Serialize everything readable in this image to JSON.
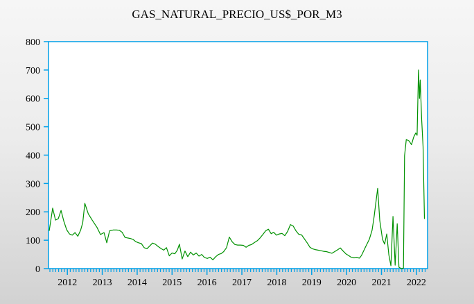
{
  "window": {
    "title": "GAS_NATURAL_PRECIO_US$_POR_M3"
  },
  "chart_data": {
    "type": "line",
    "title": "GAS_NATURAL_PRECIO_US$_POR_M3",
    "xlabel": "",
    "ylabel": "",
    "grid": "off",
    "legend": "none",
    "plot_bg": "#ffffff",
    "axis_color": "#00a0e8",
    "text_color": "#000000",
    "x_axis": {
      "range": [
        2011.46,
        2022.32
      ],
      "ticks": [
        2012,
        2013,
        2014,
        2015,
        2016,
        2017,
        2018,
        2019,
        2020,
        2021,
        2022
      ],
      "tick_labels": [
        "2012",
        "2013",
        "2014",
        "2015",
        "2016",
        "2017",
        "2018",
        "2019",
        "2020",
        "2021",
        "2022"
      ],
      "minor_ticks_per_year": 12
    },
    "y_axis": {
      "range": [
        0,
        800
      ],
      "ticks": [
        0,
        100,
        200,
        300,
        400,
        500,
        600,
        700,
        800
      ],
      "tick_labels": [
        "0",
        "100",
        "200",
        "300",
        "400",
        "500",
        "600",
        "700",
        "800"
      ]
    },
    "series": [
      {
        "name": "GAS_NATURAL_PRECIO_US$_POR_M3",
        "color": "#009100",
        "points": [
          [
            2011.48,
            133
          ],
          [
            2011.58,
            213
          ],
          [
            2011.66,
            171
          ],
          [
            2011.74,
            176
          ],
          [
            2011.82,
            205
          ],
          [
            2011.9,
            166
          ],
          [
            2011.98,
            137
          ],
          [
            2012.06,
            122
          ],
          [
            2012.14,
            118
          ],
          [
            2012.22,
            127
          ],
          [
            2012.3,
            114
          ],
          [
            2012.38,
            135
          ],
          [
            2012.44,
            162
          ],
          [
            2012.5,
            230
          ],
          [
            2012.6,
            193
          ],
          [
            2012.71,
            171
          ],
          [
            2012.85,
            145
          ],
          [
            2012.95,
            120
          ],
          [
            2013.05,
            127
          ],
          [
            2013.13,
            91
          ],
          [
            2013.21,
            133
          ],
          [
            2013.31,
            136
          ],
          [
            2013.41,
            136
          ],
          [
            2013.49,
            135
          ],
          [
            2013.57,
            128
          ],
          [
            2013.65,
            110
          ],
          [
            2013.73,
            108
          ],
          [
            2013.81,
            106
          ],
          [
            2013.88,
            103
          ],
          [
            2013.96,
            95
          ],
          [
            2014.04,
            91
          ],
          [
            2014.12,
            88
          ],
          [
            2014.2,
            74
          ],
          [
            2014.28,
            70
          ],
          [
            2014.36,
            80
          ],
          [
            2014.44,
            90
          ],
          [
            2014.52,
            86
          ],
          [
            2014.6,
            78
          ],
          [
            2014.68,
            71
          ],
          [
            2014.76,
            65
          ],
          [
            2014.84,
            74
          ],
          [
            2014.92,
            45
          ],
          [
            2015.0,
            55
          ],
          [
            2015.08,
            52
          ],
          [
            2015.15,
            65
          ],
          [
            2015.21,
            86
          ],
          [
            2015.29,
            34
          ],
          [
            2015.37,
            62
          ],
          [
            2015.45,
            42
          ],
          [
            2015.53,
            58
          ],
          [
            2015.61,
            48
          ],
          [
            2015.69,
            55
          ],
          [
            2015.77,
            44
          ],
          [
            2015.85,
            50
          ],
          [
            2015.93,
            39
          ],
          [
            2016.01,
            36
          ],
          [
            2016.09,
            40
          ],
          [
            2016.17,
            31
          ],
          [
            2016.25,
            42
          ],
          [
            2016.33,
            50
          ],
          [
            2016.41,
            53
          ],
          [
            2016.48,
            60
          ],
          [
            2016.56,
            74
          ],
          [
            2016.64,
            111
          ],
          [
            2016.72,
            95
          ],
          [
            2016.8,
            85
          ],
          [
            2016.88,
            83
          ],
          [
            2016.96,
            83
          ],
          [
            2017.04,
            82
          ],
          [
            2017.12,
            75
          ],
          [
            2017.2,
            82
          ],
          [
            2017.28,
            85
          ],
          [
            2017.36,
            92
          ],
          [
            2017.44,
            98
          ],
          [
            2017.52,
            108
          ],
          [
            2017.6,
            120
          ],
          [
            2017.68,
            133
          ],
          [
            2017.76,
            139
          ],
          [
            2017.84,
            123
          ],
          [
            2017.91,
            128
          ],
          [
            2017.99,
            118
          ],
          [
            2018.07,
            122
          ],
          [
            2018.15,
            124
          ],
          [
            2018.23,
            116
          ],
          [
            2018.31,
            131
          ],
          [
            2018.39,
            155
          ],
          [
            2018.47,
            150
          ],
          [
            2018.55,
            133
          ],
          [
            2018.63,
            121
          ],
          [
            2018.71,
            119
          ],
          [
            2018.79,
            105
          ],
          [
            2018.87,
            91
          ],
          [
            2018.95,
            75
          ],
          [
            2019.02,
            70
          ],
          [
            2019.1,
            67
          ],
          [
            2019.18,
            65
          ],
          [
            2019.26,
            63
          ],
          [
            2019.34,
            61
          ],
          [
            2019.42,
            60
          ],
          [
            2019.5,
            57
          ],
          [
            2019.58,
            54
          ],
          [
            2019.66,
            60
          ],
          [
            2019.74,
            66
          ],
          [
            2019.82,
            73
          ],
          [
            2019.9,
            62
          ],
          [
            2019.98,
            52
          ],
          [
            2020.06,
            46
          ],
          [
            2020.13,
            40
          ],
          [
            2020.21,
            38
          ],
          [
            2020.29,
            39
          ],
          [
            2020.37,
            37
          ],
          [
            2020.43,
            47
          ],
          [
            2020.55,
            78
          ],
          [
            2020.65,
            103
          ],
          [
            2020.73,
            135
          ],
          [
            2020.79,
            184
          ],
          [
            2020.83,
            225
          ],
          [
            2020.89,
            283
          ],
          [
            2020.95,
            170
          ],
          [
            2021.03,
            103
          ],
          [
            2021.09,
            86
          ],
          [
            2021.15,
            122
          ],
          [
            2021.21,
            49
          ],
          [
            2021.27,
            10
          ],
          [
            2021.33,
            184
          ],
          [
            2021.39,
            12
          ],
          [
            2021.45,
            158
          ],
          [
            2021.5,
            5
          ],
          [
            2021.57,
            0
          ],
          [
            2021.63,
            2
          ],
          [
            2021.66,
            398
          ],
          [
            2021.71,
            455
          ],
          [
            2021.79,
            450
          ],
          [
            2021.86,
            437
          ],
          [
            2021.92,
            463
          ],
          [
            2021.98,
            478
          ],
          [
            2022.02,
            470
          ],
          [
            2022.06,
            700
          ],
          [
            2022.09,
            600
          ],
          [
            2022.11,
            665
          ],
          [
            2022.15,
            530
          ],
          [
            2022.19,
            430
          ],
          [
            2022.23,
            175
          ]
        ]
      }
    ]
  }
}
